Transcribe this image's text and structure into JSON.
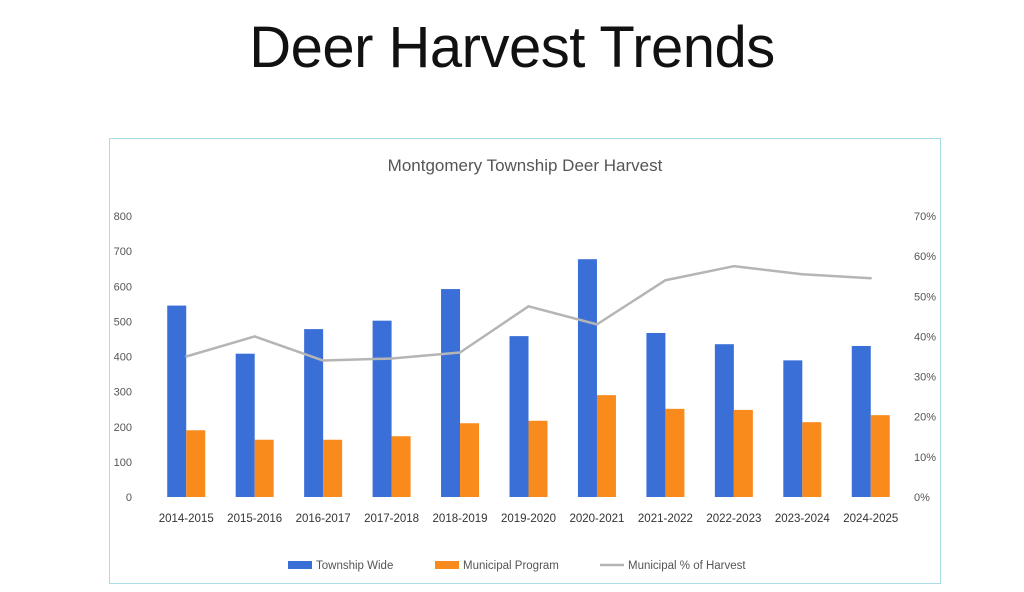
{
  "slide": {
    "title": "Deer Harvest Trends"
  },
  "colors": {
    "township": "#3a6fd8",
    "municipal": "#f98a1c",
    "percent_line": "#b5b5b5",
    "frame_border": "#a9dde6"
  },
  "chart_data": {
    "type": "bar",
    "title": "Montgomery Township Deer Harvest",
    "categories": [
      "2014-2015",
      "2015-2016",
      "2016-2017",
      "2017-2018",
      "2018-2019",
      "2019-2020",
      "2020-2021",
      "2021-2022",
      "2022-2023",
      "2023-2024",
      "2024-2025"
    ],
    "series": [
      {
        "name": "Township Wide",
        "kind": "bar",
        "axis": "left",
        "color": "#3a6fd8",
        "values": [
          545,
          408,
          478,
          502,
          592,
          458,
          677,
          467,
          435,
          389,
          430
        ]
      },
      {
        "name": "Municipal Program",
        "kind": "bar",
        "axis": "left",
        "color": "#f98a1c",
        "values": [
          190,
          163,
          163,
          173,
          210,
          217,
          290,
          251,
          248,
          213,
          233
        ]
      },
      {
        "name": "Municipal % of Harvest",
        "kind": "line",
        "axis": "right",
        "color": "#b5b5b5",
        "values": [
          35,
          40,
          34,
          34.5,
          36,
          47.5,
          43,
          54,
          57.5,
          55.5,
          54.5
        ]
      }
    ],
    "yleft": {
      "min": 0,
      "max": 800,
      "step": 100,
      "tick_labels": [
        "0",
        "100",
        "200",
        "300",
        "400",
        "500",
        "600",
        "700",
        "800"
      ]
    },
    "yright": {
      "min": 0,
      "max": 70,
      "step": 10,
      "tick_labels": [
        "0%",
        "10%",
        "20%",
        "30%",
        "40%",
        "50%",
        "60%",
        "70%"
      ]
    },
    "gridlines": false,
    "legend_position": "bottom"
  }
}
